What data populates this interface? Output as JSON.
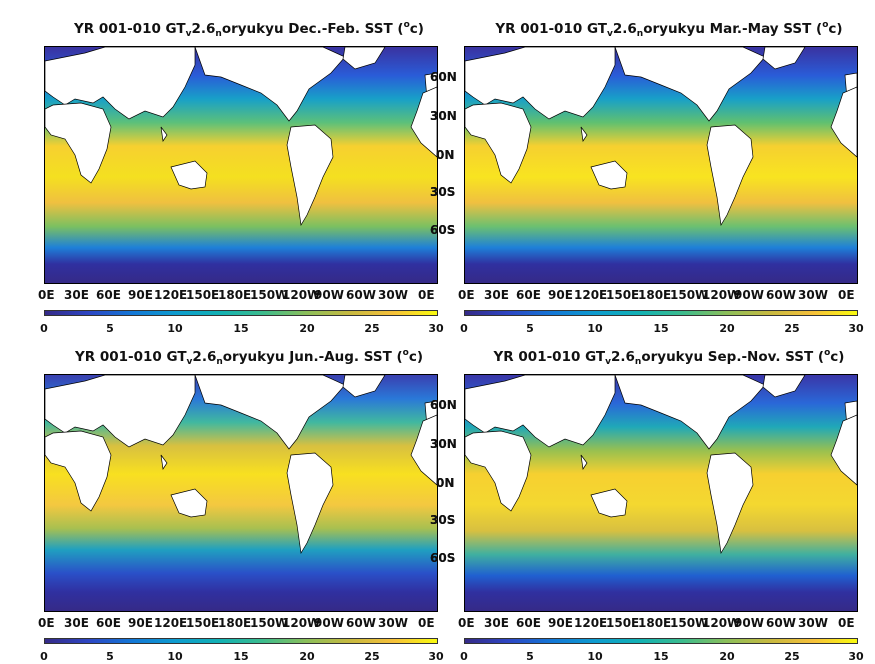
{
  "colors": {
    "ocean_cold": "#352a87",
    "ocean_mid": "#1ea7c4",
    "ocean_warm": "#f9e21e",
    "land": "#ffffff"
  },
  "panels": [
    {
      "title_pre": "YR 001-010 GT",
      "sub1": "v",
      "title_mid": "2.6",
      "sub2": "n",
      "title_post": "oryukyu Dec.-Feb. SST (",
      "sup": "o",
      "title_end": "c)"
    },
    {
      "title_pre": "YR 001-010 GT",
      "sub1": "v",
      "title_mid": "2.6",
      "sub2": "n",
      "title_post": "oryukyu Mar.-May SST (",
      "sup": "o",
      "title_end": "c)"
    },
    {
      "title_pre": "YR 001-010 GT",
      "sub1": "v",
      "title_mid": "2.6",
      "sub2": "n",
      "title_post": "oryukyu Jun.-Aug. SST (",
      "sup": "o",
      "title_end": "c)"
    },
    {
      "title_pre": "YR 001-010 GT",
      "sub1": "v",
      "title_mid": "2.6",
      "sub2": "n",
      "title_post": "oryukyu Sep.-Nov. SST (",
      "sup": "o",
      "title_end": "c)"
    }
  ],
  "lat_labels": [
    "60N",
    "30N",
    "0N",
    "30S",
    "60S"
  ],
  "lon_labels": [
    "0E",
    "30E",
    "60E",
    "90E",
    "120E",
    "150E",
    "180E",
    "150W",
    "120W",
    "90W",
    "60W",
    "30W",
    "0E"
  ],
  "colorbar_ticks": [
    "0",
    "5",
    "10",
    "15",
    "20",
    "25",
    "30"
  ]
}
